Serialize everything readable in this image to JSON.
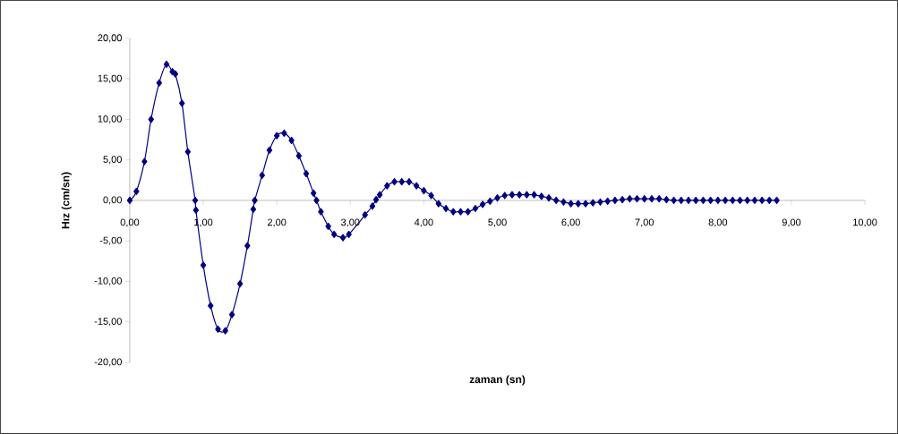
{
  "chart_data": {
    "type": "line",
    "xlabel": "zaman (sn)",
    "ylabel": "Hız (cm/sn)",
    "xlim": [
      0,
      10
    ],
    "ylim": [
      -20,
      20
    ],
    "xticks": [
      {
        "value": 0,
        "label": "0,00"
      },
      {
        "value": 1,
        "label": "1,00"
      },
      {
        "value": 2,
        "label": "2,00"
      },
      {
        "value": 3,
        "label": "3,00"
      },
      {
        "value": 4,
        "label": "4,00"
      },
      {
        "value": 5,
        "label": "5,00"
      },
      {
        "value": 6,
        "label": "6,00"
      },
      {
        "value": 7,
        "label": "7,00"
      },
      {
        "value": 8,
        "label": "8,00"
      },
      {
        "value": 9,
        "label": "9,00"
      },
      {
        "value": 10,
        "label": "10,00"
      }
    ],
    "yticks": [
      {
        "value": -20,
        "label": "-20,00"
      },
      {
        "value": -15,
        "label": "-15,00"
      },
      {
        "value": -10,
        "label": "-10,00"
      },
      {
        "value": -5,
        "label": "-5,00"
      },
      {
        "value": 0,
        "label": "0,00"
      },
      {
        "value": 5,
        "label": "5,00"
      },
      {
        "value": 10,
        "label": "10,00"
      },
      {
        "value": 15,
        "label": "15,00"
      },
      {
        "value": 20,
        "label": "20,00"
      }
    ],
    "marker": "diamond",
    "line_style": "solid",
    "grid": false,
    "series": [
      {
        "color": "#000080",
        "x": [
          0,
          0.09,
          0.2,
          0.29,
          0.4,
          0.5,
          0.58,
          0.62,
          0.71,
          0.79,
          0.89,
          0.9,
          1.0,
          1.1,
          1.2,
          1.3,
          1.39,
          1.5,
          1.6,
          1.68,
          1.7,
          1.8,
          1.9,
          2.0,
          2.1,
          2.2,
          2.3,
          2.4,
          2.5,
          2.54,
          2.6,
          2.7,
          2.78,
          2.9,
          2.98,
          3.2,
          3.3,
          3.35,
          3.4,
          3.5,
          3.6,
          3.7,
          3.8,
          3.9,
          4.0,
          4.1,
          4.2,
          4.3,
          4.4,
          4.5,
          4.6,
          4.7,
          4.8,
          4.9,
          5.0,
          5.1,
          5.2,
          5.3,
          5.4,
          5.5,
          5.6,
          5.7,
          5.8,
          5.9,
          6.0,
          6.1,
          6.2,
          6.3,
          6.4,
          6.5,
          6.6,
          6.7,
          6.8,
          6.9,
          7.0,
          7.1,
          7.2,
          7.3,
          7.4,
          7.5,
          7.6,
          7.7,
          7.8,
          7.9,
          8.0,
          8.1,
          8.2,
          8.3,
          8.4,
          8.5,
          8.6,
          8.7,
          8.8
        ],
        "values": [
          0,
          1.1,
          4.8,
          10.0,
          14.5,
          16.8,
          15.9,
          15.6,
          12.0,
          6.0,
          0,
          -1.2,
          -8.0,
          -13.0,
          -15.9,
          -16.1,
          -14.1,
          -10.3,
          -5.6,
          -1.1,
          0,
          3.1,
          6.2,
          8.0,
          8.3,
          7.4,
          5.5,
          3.3,
          0.9,
          0,
          -1.4,
          -3.2,
          -4.2,
          -4.6,
          -4.2,
          -1.8,
          -0.7,
          0.1,
          0.7,
          1.8,
          2.3,
          2.3,
          2.3,
          1.8,
          1.2,
          0.6,
          -0.4,
          -1.0,
          -1.4,
          -1.4,
          -1.4,
          -1.0,
          -0.5,
          -0.1,
          0.3,
          0.6,
          0.7,
          0.7,
          0.7,
          0.7,
          0.5,
          0.3,
          0,
          -0.2,
          -0.4,
          -0.4,
          -0.4,
          -0.3,
          -0.2,
          -0.1,
          0,
          0.1,
          0.2,
          0.2,
          0.2,
          0.2,
          0.2,
          0.1,
          0,
          0,
          0,
          0,
          0,
          0,
          0,
          0,
          0,
          0,
          0,
          0,
          0,
          0,
          0
        ]
      }
    ]
  }
}
